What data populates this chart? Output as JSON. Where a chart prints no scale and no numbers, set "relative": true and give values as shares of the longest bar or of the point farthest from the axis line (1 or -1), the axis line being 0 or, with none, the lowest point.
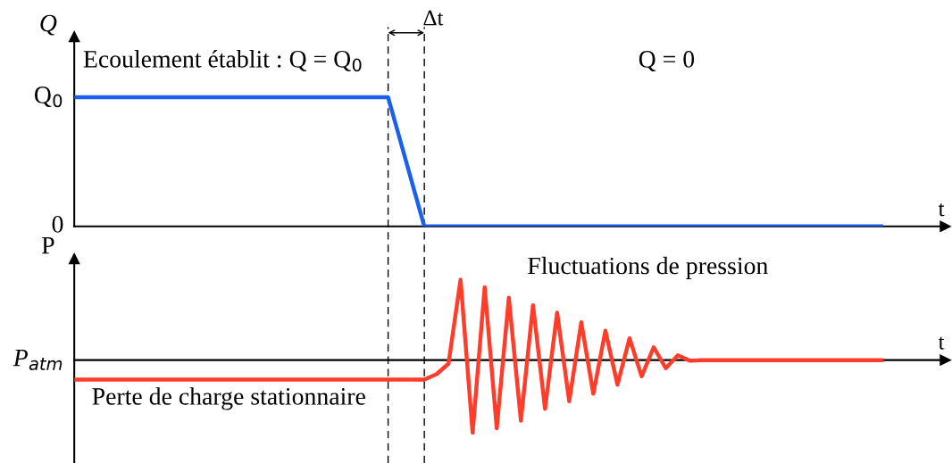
{
  "chart_data": [
    {
      "type": "line",
      "ylabel": "Q",
      "xlabel": "t",
      "relative": true,
      "categories": [
        null,
        null,
        null,
        null,
        null,
        null,
        null,
        null,
        null,
        null,
        null,
        null,
        null,
        null,
        null,
        null,
        null,
        null,
        null,
        null,
        null,
        null,
        null,
        null,
        null,
        null,
        null,
        null,
        null,
        null,
        null,
        null,
        null,
        null,
        null,
        null,
        null,
        null,
        null,
        null,
        null,
        null,
        null,
        null,
        null,
        null,
        null,
        null,
        null,
        null,
        null,
        null,
        null,
        null,
        null,
        null,
        null,
        null,
        null,
        null,
        null,
        null,
        null,
        null,
        null,
        null,
        null,
        null
      ],
      "series": [
        {
          "color": "#1a5ff0",
          "values": [
            1,
            1,
            1,
            1,
            1,
            1,
            1,
            1,
            1,
            1,
            1,
            1,
            1,
            1,
            1,
            1,
            1,
            1,
            1,
            1,
            1,
            1,
            1,
            1,
            1,
            1,
            1,
            0.667,
            0.333,
            0,
            0,
            0,
            0,
            0,
            0,
            0,
            0,
            0,
            0,
            0,
            0,
            0,
            0,
            0,
            0,
            0,
            0,
            0,
            0,
            0,
            0,
            0,
            0,
            0,
            0,
            0,
            0,
            0,
            0,
            0,
            0,
            0,
            0,
            0,
            0,
            0,
            0,
            0
          ]
        }
      ],
      "annotations": [
        "Ecoulement établit : Q = Q$_{0}$",
        "Q = 0",
        "Δt",
        "Q$_{0}$",
        "0"
      ]
    },
    {
      "type": "line",
      "ylabel": "P",
      "xlabel": "t",
      "relative": true,
      "categories": [
        null,
        null,
        null,
        null,
        null,
        null,
        null,
        null,
        null,
        null,
        null,
        null,
        null,
        null,
        null,
        null,
        null,
        null,
        null,
        null,
        null,
        null,
        null,
        null,
        null,
        null,
        null,
        null,
        null,
        null,
        null,
        null,
        null,
        null,
        null,
        null,
        null,
        null,
        null,
        null,
        null,
        null,
        null,
        null,
        null,
        null,
        null,
        null,
        null,
        null,
        null,
        null,
        null,
        null,
        null,
        null,
        null,
        null,
        null,
        null,
        null,
        null,
        null,
        null,
        null,
        null,
        null,
        null
      ],
      "series": [
        {
          "color": "#ff3d2a",
          "values": [
            -0.243,
            -0.243,
            -0.243,
            -0.243,
            -0.243,
            -0.243,
            -0.243,
            -0.243,
            -0.243,
            -0.243,
            -0.243,
            -0.243,
            -0.243,
            -0.243,
            -0.243,
            -0.243,
            -0.243,
            -0.243,
            -0.243,
            -0.243,
            -0.243,
            -0.243,
            -0.243,
            -0.243,
            -0.243,
            -0.243,
            -0.243,
            -0.243,
            -0.243,
            -0.243,
            -0.176,
            -0.045,
            1,
            -0.904,
            0.907,
            -0.848,
            0.776,
            -0.754,
            0.683,
            -0.605,
            0.59,
            -0.512,
            0.47,
            -0.418,
            0.366,
            -0.306,
            0.272,
            -0.202,
            0.16,
            -0.101,
            0.059,
            -0.008,
            0,
            0,
            0,
            0,
            0,
            0,
            0,
            0,
            0,
            0,
            0,
            0,
            0,
            0,
            0,
            0
          ]
        }
      ],
      "annotations": [
        "Fluctuations de pression",
        "Perte de charge stationnaire",
        "P$_{atm}$"
      ]
    }
  ]
}
